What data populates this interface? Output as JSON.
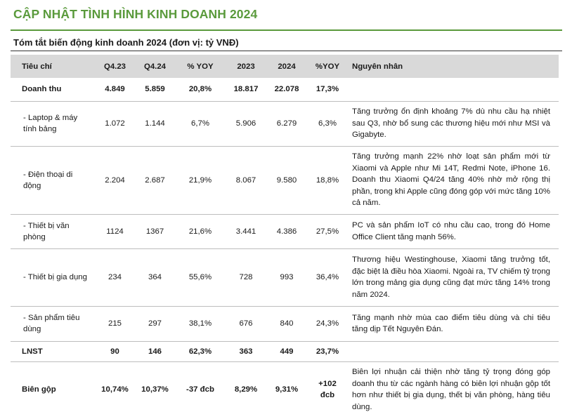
{
  "header": {
    "title": "CẬP NHẬT TÌNH HÌNH KINH DOANH 2024",
    "subtitle": "Tóm tắt biến động kinh doanh 2024 (đơn vị: tỷ VNĐ)"
  },
  "table": {
    "columns": [
      "Tiêu chí",
      "Q4.23",
      "Q4.24",
      "% YOY",
      "2023",
      "2024",
      "%YOY",
      "Nguyên nhân"
    ],
    "rows": [
      {
        "name": "Doanh thu",
        "q423": "4.849",
        "q424": "5.859",
        "yoy_q": "20,8%",
        "y2023": "18.817",
        "y2024": "22.078",
        "yoy_y": "17,3%",
        "reason": ""
      },
      {
        "name": " - Laptop & máy tính bảng",
        "q423": "1.072",
        "q424": "1.144",
        "yoy_q": "6,7%",
        "y2023": "5.906",
        "y2024": "6.279",
        "yoy_y": "6,3%",
        "reason": "Tăng trưởng ổn định khoảng 7% dù nhu cầu hạ nhiệt sau Q3, nhờ bổ sung các thương hiệu mới như MSI và Gigabyte."
      },
      {
        "name": " - Điện thoại di động",
        "q423": "2.204",
        "q424": "2.687",
        "yoy_q": "21,9%",
        "y2023": "8.067",
        "y2024": "9.580",
        "yoy_y": "18,8%",
        "reason": "Tăng trưởng mạnh 22% nhờ loạt sản phẩm mới từ Xiaomi và Apple như Mi 14T, Redmi Note, iPhone 16. Doanh thu Xiaomi Q4/24 tăng 40% nhờ mở rộng thị phần, trong khi Apple cũng đóng góp với mức tăng 10% cả năm."
      },
      {
        "name": " - Thiết bị văn phòng",
        "q423": "1124",
        "q424": "1367",
        "yoy_q": "21,6%",
        "y2023": "3.441",
        "y2024": "4.386",
        "yoy_y": "27,5%",
        "reason": "PC và sản phẩm IoT có nhu cầu cao, trong đó Home Office Client tăng mạnh 56%."
      },
      {
        "name": " - Thiết bị gia dụng",
        "q423": "234",
        "q424": "364",
        "yoy_q": "55,6%",
        "y2023": "728",
        "y2024": "993",
        "yoy_y": "36,4%",
        "reason": "Thương hiệu Westinghouse, Xiaomi tăng trưởng tốt, đặc biệt là điều hòa Xiaomi. Ngoài ra, TV chiếm tỷ trọng lớn trong mảng gia dụng cũng đạt mức tăng 14% trong năm 2024."
      },
      {
        "name": " - Sản phẩm tiêu dùng",
        "q423": "215",
        "q424": "297",
        "yoy_q": "38,1%",
        "y2023": "676",
        "y2024": "840",
        "yoy_y": "24,3%",
        "reason": "Tăng mạnh nhờ mùa cao điểm tiêu dùng và chi tiêu tăng dịp Tết Nguyên Đán."
      },
      {
        "name": "LNST",
        "q423": "90",
        "q424": "146",
        "yoy_q": "62,3%",
        "y2023": "363",
        "y2024": "449",
        "yoy_y": "23,7%",
        "reason": ""
      },
      {
        "name": "Biên gộp",
        "q423": "10,74%",
        "q424": "10,37%",
        "yoy_q": "-37 đcb",
        "y2023": "8,29%",
        "y2024": "9,31%",
        "yoy_y": "+102 đcb",
        "reason": "Biên lợi nhuận cải thiện nhờ tăng tỷ trọng đóng góp doanh thu từ các ngành hàng có biên lợi nhuận gộp tốt hơn như thiết bị gia dụng, thết bị văn phòng, hàng tiêu dùng."
      }
    ]
  }
}
